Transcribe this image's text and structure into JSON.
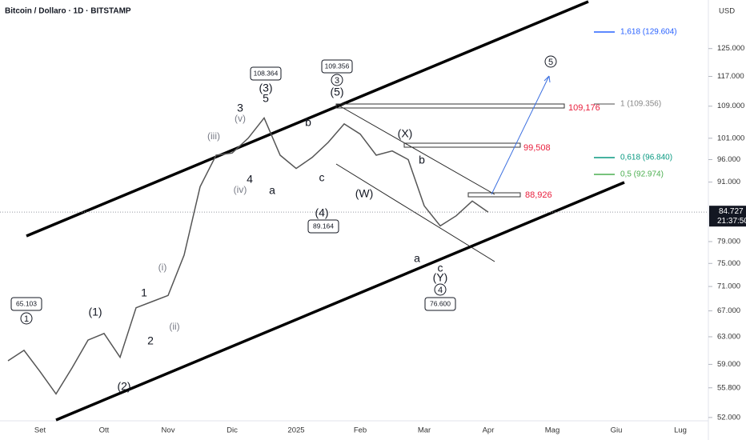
{
  "title": "Bitcoin / Dollaro · 1D · BITSTAMP",
  "currency": "USD",
  "countdown": "21:37:50",
  "chart_data": {
    "type": "line",
    "color": "#555555",
    "log_scale": true,
    "categories": [
      null,
      null,
      "Set",
      null,
      null,
      null,
      "Ott",
      null,
      null,
      null,
      "Nov",
      null,
      null,
      null,
      "Dic",
      null,
      null,
      null,
      "2025",
      null,
      null,
      null,
      "Feb",
      null,
      null,
      null,
      "Mar",
      null,
      null,
      null,
      "Apr",
      null,
      null,
      null,
      "Mag",
      null,
      null,
      null,
      "Giu",
      null,
      null,
      null,
      "Lug"
    ],
    "values": [
      59500,
      61000,
      58000,
      55000,
      58500,
      62500,
      63500,
      60000,
      67500,
      68500,
      69500,
      76500,
      90000,
      97000,
      97500,
      101000,
      106000,
      97000,
      94000,
      96500,
      100000,
      104500,
      102000,
      97000,
      98000,
      96000,
      86000,
      82000,
      84000,
      87000,
      84727,
      null,
      null,
      null,
      null,
      null,
      null,
      null,
      null,
      null,
      null,
      null,
      null
    ],
    "ylim": [
      51200,
      140300
    ],
    "yticks": [
      {
        "value": 125000,
        "label": "125.000"
      },
      {
        "value": 117000,
        "label": "117.000"
      },
      {
        "value": 109000,
        "label": "109.000"
      },
      {
        "value": 101000,
        "label": "101.000"
      },
      {
        "value": 96000,
        "label": "96.000"
      },
      {
        "value": 91000,
        "label": "91.000"
      },
      {
        "value": 79000,
        "label": "79.000"
      },
      {
        "value": 75000,
        "label": "75.000"
      },
      {
        "value": 71000,
        "label": "71.000"
      },
      {
        "value": 67000,
        "label": "67.000"
      },
      {
        "value": 63000,
        "label": "63.000"
      },
      {
        "value": 59000,
        "label": "59.000"
      },
      {
        "value": 55800,
        "label": "55.800"
      },
      {
        "value": 52000,
        "label": "52.000"
      }
    ],
    "last_price": {
      "value": 84727,
      "label": "84.727"
    },
    "levels": [
      "109,176",
      "99,508",
      "88,926"
    ],
    "fib_levels": [
      "1,618 (129.604)",
      "1 (109.356)",
      "0,618 (96.840)",
      "0,5 (92.974)"
    ],
    "annotations": [
      "65.103",
      "1",
      "(1)",
      "(2)",
      "1",
      "2",
      "(i)",
      "(ii)",
      "(iii)",
      "(iv)",
      "(v)",
      "3",
      "4",
      "a",
      "108.364",
      "(3)",
      "5",
      "b",
      "c",
      "(4)",
      "89.164",
      "109.356",
      "3",
      "(5)",
      "(X)",
      "(W)",
      "b",
      "a",
      "c",
      "(Y)",
      "4",
      "76.600",
      "5"
    ]
  }
}
